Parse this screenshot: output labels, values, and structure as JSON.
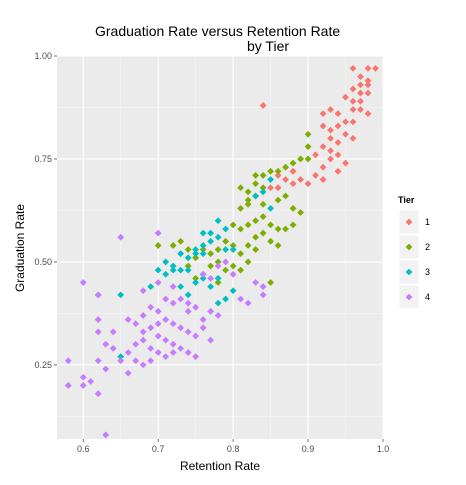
{
  "chart_data": {
    "type": "scatter",
    "title_line1": "Graduation Rate versus Retention Rate",
    "title_line2": "by Tier",
    "xlabel": "Retention Rate",
    "ylabel": "Graduation Rate",
    "xlim": [
      0.565,
      1.0
    ],
    "ylim": [
      0.07,
      1.0
    ],
    "xticks": [
      0.6,
      0.7,
      0.8,
      0.9,
      1.0
    ],
    "xtick_labels": [
      "0.6",
      "0.7",
      "0.8",
      "0.9",
      "1.0"
    ],
    "yticks": [
      0.25,
      0.5,
      0.75,
      1.0
    ],
    "ytick_labels": [
      "0.25",
      "0.50",
      "0.75",
      "1.00"
    ],
    "grid": true,
    "legend_title": "Tier",
    "legend_position": "right",
    "colors": {
      "1": "#F8766D",
      "2": "#7CAE00",
      "3": "#00BFC4",
      "4": "#C77CFF"
    },
    "series": [
      {
        "name": "1",
        "points": [
          [
            0.96,
            0.97
          ],
          [
            0.98,
            0.97
          ],
          [
            0.99,
            0.97
          ],
          [
            0.97,
            0.95
          ],
          [
            0.98,
            0.94
          ],
          [
            0.97,
            0.93
          ],
          [
            0.98,
            0.93
          ],
          [
            0.96,
            0.92
          ],
          [
            0.97,
            0.91
          ],
          [
            0.98,
            0.91
          ],
          [
            0.95,
            0.9
          ],
          [
            0.96,
            0.89
          ],
          [
            0.97,
            0.89
          ],
          [
            0.96,
            0.87
          ],
          [
            0.97,
            0.87
          ],
          [
            0.98,
            0.86
          ],
          [
            0.84,
            0.88
          ],
          [
            0.93,
            0.87
          ],
          [
            0.94,
            0.86
          ],
          [
            0.92,
            0.86
          ],
          [
            0.95,
            0.84
          ],
          [
            0.94,
            0.83
          ],
          [
            0.93,
            0.82
          ],
          [
            0.92,
            0.83
          ],
          [
            0.96,
            0.84
          ],
          [
            0.95,
            0.81
          ],
          [
            0.96,
            0.8
          ],
          [
            0.93,
            0.8
          ],
          [
            0.94,
            0.79
          ],
          [
            0.92,
            0.78
          ],
          [
            0.93,
            0.77
          ],
          [
            0.94,
            0.76
          ],
          [
            0.91,
            0.76
          ],
          [
            0.93,
            0.75
          ],
          [
            0.92,
            0.73
          ],
          [
            0.95,
            0.74
          ],
          [
            0.94,
            0.72
          ],
          [
            0.88,
            0.72
          ],
          [
            0.89,
            0.7
          ],
          [
            0.9,
            0.69
          ],
          [
            0.88,
            0.69
          ],
          [
            0.87,
            0.7
          ],
          [
            0.86,
            0.71
          ],
          [
            0.91,
            0.71
          ],
          [
            0.86,
            0.68
          ],
          [
            0.85,
            0.68
          ],
          [
            0.92,
            0.7
          ]
        ]
      },
      {
        "name": "2",
        "points": [
          [
            0.9,
            0.81
          ],
          [
            0.9,
            0.78
          ],
          [
            0.89,
            0.75
          ],
          [
            0.9,
            0.75
          ],
          [
            0.88,
            0.74
          ],
          [
            0.87,
            0.73
          ],
          [
            0.86,
            0.72
          ],
          [
            0.85,
            0.72
          ],
          [
            0.84,
            0.71
          ],
          [
            0.83,
            0.71
          ],
          [
            0.83,
            0.69
          ],
          [
            0.84,
            0.68
          ],
          [
            0.82,
            0.67
          ],
          [
            0.81,
            0.68
          ],
          [
            0.83,
            0.66
          ],
          [
            0.82,
            0.65
          ],
          [
            0.82,
            0.64
          ],
          [
            0.81,
            0.63
          ],
          [
            0.84,
            0.64
          ],
          [
            0.86,
            0.65
          ],
          [
            0.87,
            0.66
          ],
          [
            0.84,
            0.61
          ],
          [
            0.83,
            0.6
          ],
          [
            0.82,
            0.59
          ],
          [
            0.81,
            0.58
          ],
          [
            0.8,
            0.59
          ],
          [
            0.85,
            0.59
          ],
          [
            0.86,
            0.58
          ],
          [
            0.87,
            0.58
          ],
          [
            0.88,
            0.59
          ],
          [
            0.84,
            0.57
          ],
          [
            0.83,
            0.56
          ],
          [
            0.85,
            0.55
          ],
          [
            0.86,
            0.54
          ],
          [
            0.82,
            0.54
          ],
          [
            0.81,
            0.52
          ],
          [
            0.79,
            0.55
          ],
          [
            0.8,
            0.54
          ],
          [
            0.78,
            0.53
          ],
          [
            0.77,
            0.52
          ],
          [
            0.76,
            0.53
          ],
          [
            0.83,
            0.53
          ],
          [
            0.82,
            0.5
          ],
          [
            0.8,
            0.49
          ],
          [
            0.79,
            0.48
          ],
          [
            0.78,
            0.5
          ],
          [
            0.77,
            0.49
          ],
          [
            0.75,
            0.51
          ],
          [
            0.74,
            0.49
          ],
          [
            0.72,
            0.54
          ],
          [
            0.7,
            0.54
          ],
          [
            0.73,
            0.55
          ],
          [
            0.74,
            0.53
          ],
          [
            0.81,
            0.48
          ],
          [
            0.85,
            0.45
          ],
          [
            0.78,
            0.45
          ],
          [
            0.76,
            0.47
          ],
          [
            0.75,
            0.46
          ],
          [
            0.88,
            0.63
          ],
          [
            0.89,
            0.62
          ]
        ]
      },
      {
        "name": "3",
        "points": [
          [
            0.85,
            0.7
          ],
          [
            0.84,
            0.67
          ],
          [
            0.83,
            0.66
          ],
          [
            0.85,
            0.63
          ],
          [
            0.78,
            0.6
          ],
          [
            0.79,
            0.58
          ],
          [
            0.77,
            0.57
          ],
          [
            0.76,
            0.57
          ],
          [
            0.78,
            0.56
          ],
          [
            0.77,
            0.55
          ],
          [
            0.76,
            0.54
          ],
          [
            0.75,
            0.53
          ],
          [
            0.79,
            0.53
          ],
          [
            0.8,
            0.53
          ],
          [
            0.75,
            0.52
          ],
          [
            0.76,
            0.52
          ],
          [
            0.73,
            0.52
          ],
          [
            0.74,
            0.51
          ],
          [
            0.71,
            0.5
          ],
          [
            0.72,
            0.49
          ],
          [
            0.73,
            0.48
          ],
          [
            0.74,
            0.48
          ],
          [
            0.72,
            0.48
          ],
          [
            0.7,
            0.48
          ],
          [
            0.71,
            0.47
          ],
          [
            0.78,
            0.46
          ],
          [
            0.76,
            0.46
          ],
          [
            0.77,
            0.44
          ],
          [
            0.73,
            0.44
          ],
          [
            0.75,
            0.45
          ],
          [
            0.69,
            0.44
          ],
          [
            0.8,
            0.43
          ],
          [
            0.79,
            0.41
          ],
          [
            0.78,
            0.4
          ],
          [
            0.74,
            0.42
          ],
          [
            0.62,
            0.42
          ],
          [
            0.65,
            0.42
          ],
          [
            0.65,
            0.27
          ]
        ]
      },
      {
        "name": "4",
        "points": [
          [
            0.65,
            0.56
          ],
          [
            0.7,
            0.57
          ],
          [
            0.6,
            0.45
          ],
          [
            0.62,
            0.42
          ],
          [
            0.7,
            0.45
          ],
          [
            0.68,
            0.43
          ],
          [
            0.72,
            0.44
          ],
          [
            0.76,
            0.47
          ],
          [
            0.77,
            0.46
          ],
          [
            0.79,
            0.5
          ],
          [
            0.78,
            0.49
          ],
          [
            0.8,
            0.47
          ],
          [
            0.83,
            0.45
          ],
          [
            0.84,
            0.44
          ],
          [
            0.71,
            0.41
          ],
          [
            0.72,
            0.4
          ],
          [
            0.73,
            0.41
          ],
          [
            0.74,
            0.4
          ],
          [
            0.75,
            0.39
          ],
          [
            0.77,
            0.38
          ],
          [
            0.78,
            0.37
          ],
          [
            0.76,
            0.36
          ],
          [
            0.74,
            0.38
          ],
          [
            0.7,
            0.38
          ],
          [
            0.69,
            0.39
          ],
          [
            0.68,
            0.37
          ],
          [
            0.7,
            0.35
          ],
          [
            0.71,
            0.36
          ],
          [
            0.72,
            0.35
          ],
          [
            0.73,
            0.34
          ],
          [
            0.74,
            0.33
          ],
          [
            0.75,
            0.32
          ],
          [
            0.76,
            0.34
          ],
          [
            0.77,
            0.31
          ],
          [
            0.66,
            0.36
          ],
          [
            0.67,
            0.35
          ],
          [
            0.68,
            0.33
          ],
          [
            0.69,
            0.34
          ],
          [
            0.7,
            0.32
          ],
          [
            0.71,
            0.31
          ],
          [
            0.72,
            0.3
          ],
          [
            0.73,
            0.29
          ],
          [
            0.74,
            0.28
          ],
          [
            0.75,
            0.27
          ],
          [
            0.67,
            0.3
          ],
          [
            0.68,
            0.31
          ],
          [
            0.69,
            0.29
          ],
          [
            0.7,
            0.28
          ],
          [
            0.71,
            0.27
          ],
          [
            0.72,
            0.28
          ],
          [
            0.62,
            0.36
          ],
          [
            0.64,
            0.33
          ],
          [
            0.66,
            0.28
          ],
          [
            0.67,
            0.26
          ],
          [
            0.68,
            0.25
          ],
          [
            0.69,
            0.26
          ],
          [
            0.66,
            0.23
          ],
          [
            0.65,
            0.26
          ],
          [
            0.62,
            0.33
          ],
          [
            0.63,
            0.3
          ],
          [
            0.64,
            0.29
          ],
          [
            0.62,
            0.26
          ],
          [
            0.63,
            0.24
          ],
          [
            0.6,
            0.22
          ],
          [
            0.61,
            0.21
          ],
          [
            0.58,
            0.26
          ],
          [
            0.58,
            0.2
          ],
          [
            0.6,
            0.2
          ],
          [
            0.62,
            0.18
          ],
          [
            0.63,
            0.08
          ],
          [
            0.84,
            0.42
          ],
          [
            0.81,
            0.41
          ],
          [
            0.82,
            0.4
          ]
        ]
      }
    ]
  }
}
